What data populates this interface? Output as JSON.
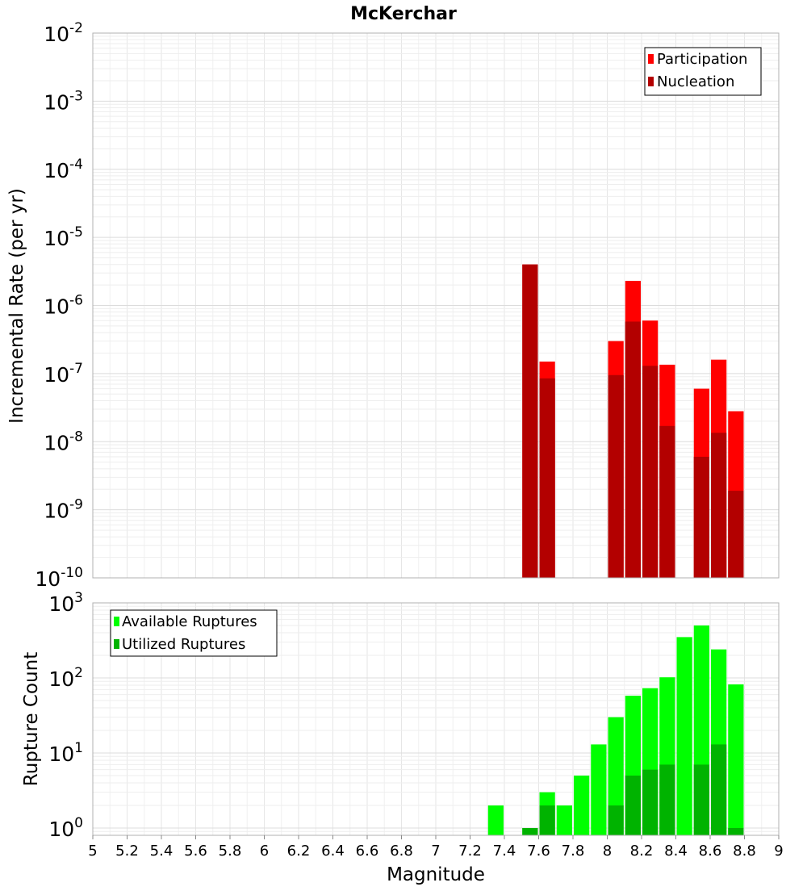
{
  "chart_data": [
    {
      "type": "bar",
      "title": "McKerchar",
      "xlabel": "Magnitude",
      "ylabel": "Incremental Rate (per yr)",
      "xlim": [
        5,
        9
      ],
      "ylim": [
        1e-10,
        0.01
      ],
      "yscale": "log",
      "grid": true,
      "legend_position": "top-right",
      "bin_width": 0.1,
      "y_ticks": [
        {
          "base": "10",
          "exp": "-10",
          "value": 1e-10
        },
        {
          "base": "10",
          "exp": "-9",
          "value": 1e-09
        },
        {
          "base": "10",
          "exp": "-8",
          "value": 1e-08
        },
        {
          "base": "10",
          "exp": "-7",
          "value": 1e-07
        },
        {
          "base": "10",
          "exp": "-6",
          "value": 1e-06
        },
        {
          "base": "10",
          "exp": "-5",
          "value": 1e-05
        },
        {
          "base": "10",
          "exp": "-4",
          "value": 0.0001
        },
        {
          "base": "10",
          "exp": "-3",
          "value": 0.001
        },
        {
          "base": "10",
          "exp": "-2",
          "value": 0.01
        }
      ],
      "series": [
        {
          "name": "Participation",
          "color": "#ff0000",
          "points": [
            {
              "x": 7.55,
              "y": 4e-06
            },
            {
              "x": 7.65,
              "y": 1.5e-07
            },
            {
              "x": 8.05,
              "y": 3e-07
            },
            {
              "x": 8.15,
              "y": 2.3e-06
            },
            {
              "x": 8.25,
              "y": 6e-07
            },
            {
              "x": 8.35,
              "y": 1.35e-07
            },
            {
              "x": 8.55,
              "y": 6e-08
            },
            {
              "x": 8.65,
              "y": 1.6e-07
            },
            {
              "x": 8.75,
              "y": 2.8e-08
            }
          ]
        },
        {
          "name": "Nucleation",
          "color": "#b30000",
          "points": [
            {
              "x": 7.55,
              "y": 4e-06
            },
            {
              "x": 7.65,
              "y": 8.5e-08
            },
            {
              "x": 8.05,
              "y": 9.5e-08
            },
            {
              "x": 8.15,
              "y": 5.8e-07
            },
            {
              "x": 8.25,
              "y": 1.3e-07
            },
            {
              "x": 8.35,
              "y": 1.7e-08
            },
            {
              "x": 8.55,
              "y": 6e-09
            },
            {
              "x": 8.65,
              "y": 1.35e-08
            },
            {
              "x": 8.75,
              "y": 1.9e-09
            }
          ]
        }
      ]
    },
    {
      "type": "bar",
      "xlabel": "Magnitude",
      "ylabel": "Rupture Count",
      "xlim": [
        5,
        9
      ],
      "ylim": [
        0.8,
        1000
      ],
      "yscale": "log",
      "grid": true,
      "legend_position": "top-left",
      "bin_width": 0.1,
      "x_ticks": [
        "5",
        "5.2",
        "5.4",
        "5.6",
        "5.8",
        "6",
        "6.2",
        "6.4",
        "6.6",
        "6.8",
        "7",
        "7.2",
        "7.4",
        "7.6",
        "7.8",
        "8",
        "8.2",
        "8.4",
        "8.6",
        "8.8",
        "9"
      ],
      "y_ticks": [
        {
          "base": "10",
          "exp": "0",
          "value": 1
        },
        {
          "base": "10",
          "exp": "1",
          "value": 10
        },
        {
          "base": "10",
          "exp": "2",
          "value": 100
        },
        {
          "base": "10",
          "exp": "3",
          "value": 1000
        }
      ],
      "series": [
        {
          "name": "Available Ruptures",
          "color": "#00ff00",
          "points": [
            {
              "x": 7.35,
              "y": 2
            },
            {
              "x": 7.55,
              "y": 1
            },
            {
              "x": 7.65,
              "y": 3
            },
            {
              "x": 7.75,
              "y": 2
            },
            {
              "x": 7.85,
              "y": 5
            },
            {
              "x": 7.95,
              "y": 13
            },
            {
              "x": 8.05,
              "y": 30
            },
            {
              "x": 8.15,
              "y": 58
            },
            {
              "x": 8.25,
              "y": 73
            },
            {
              "x": 8.35,
              "y": 102
            },
            {
              "x": 8.45,
              "y": 350
            },
            {
              "x": 8.55,
              "y": 500
            },
            {
              "x": 8.65,
              "y": 240
            },
            {
              "x": 8.75,
              "y": 82
            }
          ]
        },
        {
          "name": "Utilized Ruptures",
          "color": "#00b300",
          "points": [
            {
              "x": 7.55,
              "y": 1
            },
            {
              "x": 7.65,
              "y": 2
            },
            {
              "x": 8.05,
              "y": 2
            },
            {
              "x": 8.15,
              "y": 5
            },
            {
              "x": 8.25,
              "y": 6
            },
            {
              "x": 8.35,
              "y": 7
            },
            {
              "x": 8.55,
              "y": 7
            },
            {
              "x": 8.65,
              "y": 13
            },
            {
              "x": 8.75,
              "y": 1
            }
          ]
        }
      ]
    }
  ]
}
